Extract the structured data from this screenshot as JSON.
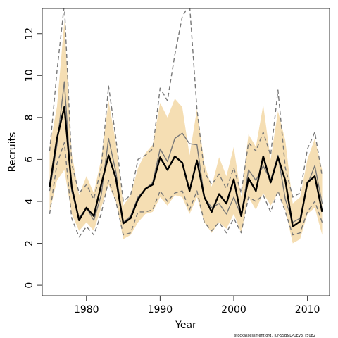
{
  "chart_data": {
    "type": "line",
    "xlabel": "Year",
    "ylabel": "Recruits",
    "xlim": [
      1974,
      2013
    ],
    "ylim": [
      -0.5,
      13.2
    ],
    "x_ticks": [
      1980,
      1990,
      2000,
      2010
    ],
    "y_ticks": [
      0,
      2,
      4,
      6,
      8,
      10,
      12
    ],
    "x": [
      1975,
      1976,
      1977,
      1978,
      1979,
      1980,
      1981,
      1982,
      1983,
      1984,
      1985,
      1986,
      1987,
      1988,
      1989,
      1990,
      1991,
      1992,
      1993,
      1994,
      1995,
      1996,
      1997,
      1998,
      1999,
      2000,
      2001,
      2002,
      2003,
      2004,
      2005,
      2006,
      2007,
      2008,
      2009,
      2010,
      2011,
      2012
    ],
    "band_color": "#f5deb3",
    "series": [
      {
        "role": "median",
        "color": "#000000",
        "style": "solid",
        "values": [
          4.7,
          7.0,
          8.5,
          4.7,
          3.1,
          3.7,
          3.3,
          4.8,
          6.2,
          5.1,
          2.95,
          3.2,
          4.1,
          4.6,
          4.8,
          6.1,
          5.5,
          6.15,
          5.85,
          4.5,
          5.95,
          4.2,
          3.5,
          4.35,
          3.9,
          5.05,
          3.3,
          5.1,
          4.5,
          6.15,
          4.9,
          6.1,
          5.0,
          2.8,
          3.05,
          4.9,
          5.2,
          3.5
        ]
      },
      {
        "role": "point-estimate",
        "color": "#777777",
        "style": "solid",
        "values": [
          4.5,
          6.7,
          9.7,
          4.5,
          3.2,
          3.7,
          3.1,
          4.3,
          7.0,
          5.4,
          3.0,
          3.3,
          4.2,
          4.6,
          4.9,
          6.5,
          5.9,
          7.0,
          7.25,
          6.75,
          6.7,
          4.2,
          3.7,
          3.9,
          3.4,
          4.2,
          3.3,
          5.5,
          5.0,
          5.7,
          5.0,
          6.2,
          4.1,
          3.0,
          3.2,
          4.8,
          5.7,
          3.9
        ]
      },
      {
        "role": "lower-dashed",
        "color": "#777777",
        "style": "dashed",
        "values": [
          3.4,
          5.8,
          6.8,
          3.2,
          2.3,
          2.8,
          2.4,
          3.4,
          5.0,
          4.0,
          2.4,
          2.5,
          3.5,
          3.5,
          3.6,
          4.5,
          4.0,
          4.4,
          4.5,
          3.6,
          4.5,
          3.0,
          2.6,
          3.0,
          2.5,
          3.2,
          2.5,
          4.2,
          4.0,
          4.3,
          3.5,
          4.5,
          3.5,
          2.4,
          2.5,
          3.5,
          4.0,
          3.0
        ]
      },
      {
        "role": "upper-dashed",
        "color": "#777777",
        "style": "dashed",
        "values": [
          6.4,
          10.2,
          13.4,
          5.8,
          4.4,
          4.8,
          4.1,
          5.6,
          9.5,
          7.0,
          4.0,
          4.3,
          6.0,
          6.2,
          6.5,
          9.4,
          8.8,
          11.0,
          12.8,
          13.4,
          8.4,
          5.4,
          4.8,
          5.3,
          4.6,
          5.6,
          4.4,
          6.8,
          6.4,
          7.3,
          6.2,
          9.3,
          5.6,
          4.2,
          4.4,
          6.5,
          7.3,
          5.2
        ]
      },
      {
        "role": "band-lower",
        "values": [
          3.5,
          5.0,
          5.5,
          3.4,
          2.6,
          3.0,
          2.6,
          3.7,
          4.8,
          4.0,
          2.2,
          2.4,
          3.0,
          3.4,
          3.5,
          4.2,
          3.8,
          4.3,
          4.2,
          3.4,
          4.2,
          3.0,
          2.5,
          3.0,
          2.7,
          3.4,
          2.5,
          4.2,
          3.6,
          4.4,
          3.8,
          4.4,
          3.6,
          2.0,
          2.2,
          3.4,
          3.7,
          2.4
        ]
      },
      {
        "role": "band-upper",
        "values": [
          6.6,
          8.5,
          12.6,
          6.3,
          4.3,
          5.2,
          4.4,
          6.0,
          8.8,
          6.8,
          3.8,
          4.3,
          5.6,
          6.3,
          6.7,
          8.7,
          8.0,
          8.9,
          8.5,
          6.2,
          8.4,
          5.8,
          4.7,
          6.1,
          5.2,
          6.6,
          4.2,
          7.2,
          6.6,
          8.6,
          6.0,
          8.3,
          6.9,
          3.9,
          4.2,
          6.0,
          7.0,
          5.5
        ]
      }
    ]
  },
  "footnote": "stockassessment.org, Tur-SSB&LPUEv3, r5082"
}
